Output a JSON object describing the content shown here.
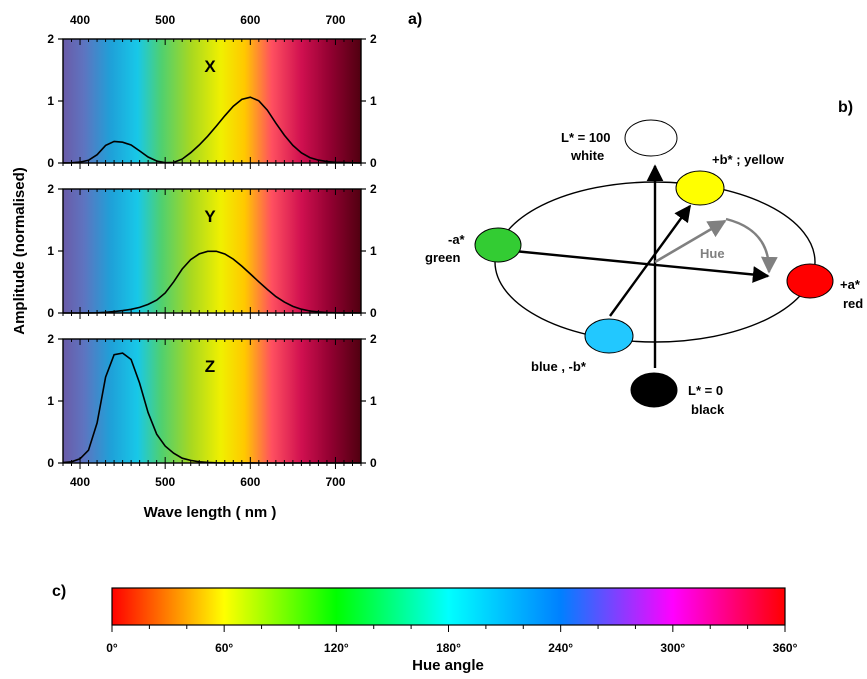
{
  "panel_labels": {
    "a": "a)",
    "b": "b)",
    "c": "c)"
  },
  "chart_data": [
    {
      "type": "line",
      "panels": [
        {
          "name": "X",
          "xlim": [
            380,
            730
          ],
          "ylim": [
            0,
            2
          ],
          "x": [
            380,
            390,
            400,
            410,
            420,
            430,
            440,
            450,
            460,
            470,
            480,
            490,
            500,
            510,
            520,
            530,
            540,
            550,
            560,
            570,
            580,
            590,
            600,
            610,
            620,
            630,
            640,
            650,
            660,
            670,
            680,
            690,
            700,
            710,
            720,
            730
          ],
          "y": [
            0.001,
            0.004,
            0.014,
            0.044,
            0.134,
            0.284,
            0.348,
            0.336,
            0.291,
            0.195,
            0.096,
            0.032,
            0.005,
            0.009,
            0.063,
            0.166,
            0.29,
            0.433,
            0.595,
            0.762,
            0.916,
            1.026,
            1.062,
            1.003,
            0.854,
            0.642,
            0.448,
            0.284,
            0.165,
            0.087,
            0.047,
            0.023,
            0.011,
            0.006,
            0.003,
            0.001
          ]
        },
        {
          "name": "Y",
          "xlim": [
            380,
            730
          ],
          "ylim": [
            0,
            2
          ],
          "x": [
            380,
            390,
            400,
            410,
            420,
            430,
            440,
            450,
            460,
            470,
            480,
            490,
            500,
            510,
            520,
            530,
            540,
            550,
            560,
            570,
            580,
            590,
            600,
            610,
            620,
            630,
            640,
            650,
            660,
            670,
            680,
            690,
            700,
            710,
            720,
            730
          ],
          "y": [
            0.0,
            0.0,
            0.0,
            0.001,
            0.004,
            0.012,
            0.023,
            0.038,
            0.06,
            0.091,
            0.139,
            0.208,
            0.323,
            0.503,
            0.71,
            0.862,
            0.954,
            0.995,
            0.995,
            0.952,
            0.87,
            0.757,
            0.631,
            0.503,
            0.381,
            0.265,
            0.175,
            0.107,
            0.061,
            0.032,
            0.017,
            0.008,
            0.004,
            0.002,
            0.001,
            0.0
          ]
        },
        {
          "name": "Z",
          "xlim": [
            380,
            730
          ],
          "ylim": [
            0,
            2
          ],
          "x": [
            380,
            390,
            400,
            410,
            420,
            430,
            440,
            450,
            460,
            470,
            480,
            490,
            500,
            510,
            520,
            530,
            540,
            550,
            560,
            570,
            580,
            590,
            600,
            610,
            620,
            630,
            640,
            650,
            660,
            670,
            680,
            690,
            700,
            710,
            720,
            730
          ],
          "y": [
            0.007,
            0.02,
            0.068,
            0.207,
            0.646,
            1.386,
            1.747,
            1.772,
            1.669,
            1.288,
            0.813,
            0.465,
            0.272,
            0.158,
            0.078,
            0.042,
            0.02,
            0.009,
            0.004,
            0.002,
            0.002,
            0.001,
            0.001,
            0.0,
            0.0,
            0.0,
            0.0,
            0.0,
            0.0,
            0.0,
            0.0,
            0.0,
            0.0,
            0.0,
            0.0,
            0.0
          ]
        }
      ],
      "x_ticks": [
        400,
        500,
        600,
        700
      ],
      "y_ticks": [
        0,
        1,
        2
      ],
      "xlabel": "Wave length ( nm )",
      "ylabel": "Amplitude (normalised)"
    },
    {
      "type": "colorbar",
      "xlim": [
        0,
        360
      ],
      "ticks": [
        "0°",
        "60°",
        "120°",
        "180°",
        "240°",
        "300°",
        "360°"
      ],
      "xlabel": "Hue angle"
    }
  ],
  "lab_diagram": {
    "white": "L* = 100",
    "white_name": "white",
    "black": "L* = 0",
    "black_name": "black",
    "yellow": "+b* ; yellow",
    "green_axis": "-a*",
    "green_name": "green",
    "red_axis": "+a*",
    "red_name": "red",
    "blue": "blue , -b*",
    "hue": "Hue",
    "colors": {
      "white": "#ffffff",
      "yellow": "#ffff00",
      "green": "#33cc33",
      "red": "#ff0000",
      "blue": "#22c8ff",
      "black": "#000000",
      "hue_arrow": "#808080"
    }
  }
}
